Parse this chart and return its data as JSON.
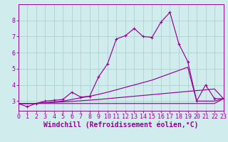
{
  "x": [
    0,
    1,
    2,
    3,
    4,
    5,
    6,
    7,
    8,
    9,
    10,
    11,
    12,
    13,
    14,
    15,
    16,
    17,
    18,
    19,
    20,
    21,
    22,
    23
  ],
  "y_main": [
    2.85,
    2.65,
    2.85,
    3.0,
    3.05,
    3.1,
    3.55,
    3.25,
    3.3,
    4.5,
    5.3,
    6.85,
    7.05,
    7.5,
    7.0,
    6.95,
    7.9,
    8.5,
    6.55,
    5.45,
    3.0,
    4.0,
    3.15,
    3.15
  ],
  "y_line1": [
    2.85,
    2.85,
    2.85,
    2.9,
    2.92,
    2.95,
    2.98,
    3.02,
    3.06,
    3.1,
    3.15,
    3.2,
    3.25,
    3.3,
    3.35,
    3.4,
    3.45,
    3.5,
    3.55,
    3.6,
    3.65,
    3.7,
    3.75,
    3.15
  ],
  "y_line2": [
    2.85,
    2.85,
    2.85,
    2.9,
    2.95,
    3.0,
    3.1,
    3.2,
    3.3,
    3.42,
    3.55,
    3.7,
    3.85,
    4.0,
    4.15,
    4.3,
    4.5,
    4.7,
    4.9,
    5.1,
    3.0,
    3.0,
    3.0,
    3.15
  ],
  "y_flat": [
    2.85,
    2.85,
    2.85,
    2.85,
    2.85,
    2.85,
    2.85,
    2.85,
    2.85,
    2.85,
    2.85,
    2.85,
    2.85,
    2.85,
    2.85,
    2.85,
    2.85,
    2.85,
    2.85,
    2.85,
    2.85,
    2.85,
    2.85,
    3.15
  ],
  "line_color": "#990099",
  "bg_color": "#d0ecec",
  "grid_color": "#a8cccc",
  "xlabel": "Windchill (Refroidissement éolien,°C)",
  "xlabel_fontsize": 7,
  "tick_fontsize": 6,
  "xlim": [
    0,
    23
  ],
  "ylim": [
    2.4,
    9.0
  ],
  "yticks": [
    3,
    4,
    5,
    6,
    7,
    8
  ],
  "xticks": [
    0,
    1,
    2,
    3,
    4,
    5,
    6,
    7,
    8,
    9,
    10,
    11,
    12,
    13,
    14,
    15,
    16,
    17,
    18,
    19,
    20,
    21,
    22,
    23
  ]
}
